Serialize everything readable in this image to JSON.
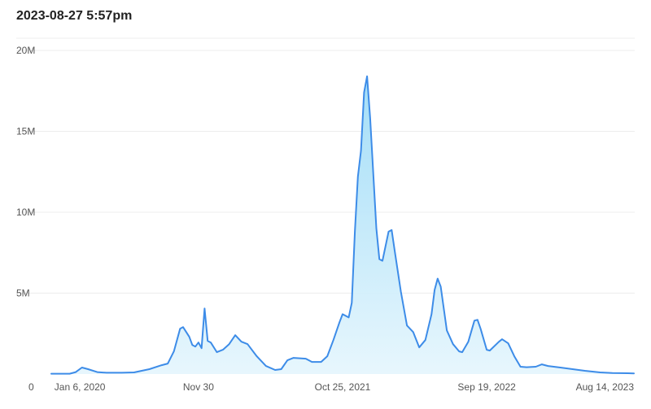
{
  "header": {
    "title": "2023-08-27 5:57pm"
  },
  "chart_data": {
    "type": "area",
    "title": "2023-08-27 5:57pm",
    "xlabel": "",
    "ylabel": "",
    "ylim": [
      0,
      20000000
    ],
    "y_ticks": [
      {
        "value": 0,
        "label": "0"
      },
      {
        "value": 5000000,
        "label": "5M"
      },
      {
        "value": 10000000,
        "label": "10M"
      },
      {
        "value": 15000000,
        "label": "15M"
      },
      {
        "value": 20000000,
        "label": "20M"
      }
    ],
    "x_ticks": [
      {
        "date": "2020-01-06",
        "label": "Jan 6, 2020"
      },
      {
        "date": "2020-11-30",
        "label": "Nov 30"
      },
      {
        "date": "2021-10-25",
        "label": "Oct 25, 2021"
      },
      {
        "date": "2022-09-19",
        "label": "Sep 19, 2022"
      },
      {
        "date": "2023-08-14",
        "label": "Aug 14, 2023"
      }
    ],
    "grid": true,
    "colors": {
      "line": "#3d8ce8",
      "fill_top": "#9fdcf7",
      "fill_bottom": "#e6f6fd"
    },
    "series": [
      {
        "values": [
          [
            "2019-12-30",
            20000
          ],
          [
            "2020-02-10",
            20000
          ],
          [
            "2020-02-24",
            120000
          ],
          [
            "2020-03-09",
            400000
          ],
          [
            "2020-03-23",
            300000
          ],
          [
            "2020-04-13",
            120000
          ],
          [
            "2020-05-04",
            80000
          ],
          [
            "2020-06-08",
            80000
          ],
          [
            "2020-07-06",
            100000
          ],
          [
            "2020-08-10",
            300000
          ],
          [
            "2020-09-07",
            550000
          ],
          [
            "2020-09-21",
            650000
          ],
          [
            "2020-10-05",
            1400000
          ],
          [
            "2020-10-19",
            2800000
          ],
          [
            "2020-10-26",
            2900000
          ],
          [
            "2020-11-09",
            2300000
          ],
          [
            "2020-11-16",
            1800000
          ],
          [
            "2020-11-23",
            1700000
          ],
          [
            "2020-11-30",
            1950000
          ],
          [
            "2020-12-07",
            1600000
          ],
          [
            "2020-12-14",
            4050000
          ],
          [
            "2020-12-21",
            2050000
          ],
          [
            "2020-12-28",
            1950000
          ],
          [
            "2021-01-11",
            1350000
          ],
          [
            "2021-01-25",
            1500000
          ],
          [
            "2021-02-08",
            1850000
          ],
          [
            "2021-02-22",
            2400000
          ],
          [
            "2021-03-08",
            2000000
          ],
          [
            "2021-03-22",
            1850000
          ],
          [
            "2021-04-12",
            1100000
          ],
          [
            "2021-05-03",
            500000
          ],
          [
            "2021-05-24",
            250000
          ],
          [
            "2021-06-07",
            300000
          ],
          [
            "2021-06-21",
            850000
          ],
          [
            "2021-07-05",
            1000000
          ],
          [
            "2021-08-02",
            950000
          ],
          [
            "2021-08-16",
            750000
          ],
          [
            "2021-09-06",
            750000
          ],
          [
            "2021-09-20",
            1100000
          ],
          [
            "2021-10-04",
            2100000
          ],
          [
            "2021-10-18",
            3200000
          ],
          [
            "2021-10-25",
            3700000
          ],
          [
            "2021-11-08",
            3500000
          ],
          [
            "2021-11-15",
            4400000
          ],
          [
            "2021-11-22",
            8800000
          ],
          [
            "2021-11-29",
            12200000
          ],
          [
            "2021-12-06",
            13800000
          ],
          [
            "2021-12-13",
            17400000
          ],
          [
            "2021-12-20",
            18400000
          ],
          [
            "2021-12-27",
            15800000
          ],
          [
            "2022-01-10",
            9000000
          ],
          [
            "2022-01-17",
            7100000
          ],
          [
            "2022-01-24",
            7000000
          ],
          [
            "2022-02-07",
            8800000
          ],
          [
            "2022-02-14",
            8900000
          ],
          [
            "2022-02-21",
            7600000
          ],
          [
            "2022-03-07",
            5100000
          ],
          [
            "2022-03-21",
            3000000
          ],
          [
            "2022-04-04",
            2600000
          ],
          [
            "2022-04-18",
            1650000
          ],
          [
            "2022-05-02",
            2100000
          ],
          [
            "2022-05-16",
            3700000
          ],
          [
            "2022-05-23",
            5200000
          ],
          [
            "2022-05-30",
            5900000
          ],
          [
            "2022-06-06",
            5400000
          ],
          [
            "2022-06-20",
            2700000
          ],
          [
            "2022-07-04",
            1850000
          ],
          [
            "2022-07-18",
            1400000
          ],
          [
            "2022-07-25",
            1350000
          ],
          [
            "2022-08-08",
            2000000
          ],
          [
            "2022-08-22",
            3300000
          ],
          [
            "2022-08-29",
            3350000
          ],
          [
            "2022-09-05",
            2800000
          ],
          [
            "2022-09-19",
            1500000
          ],
          [
            "2022-09-26",
            1450000
          ],
          [
            "2022-10-17",
            2000000
          ],
          [
            "2022-10-24",
            2150000
          ],
          [
            "2022-11-07",
            1900000
          ],
          [
            "2022-11-21",
            1100000
          ],
          [
            "2022-12-05",
            450000
          ],
          [
            "2022-12-19",
            420000
          ],
          [
            "2023-01-09",
            450000
          ],
          [
            "2023-01-23",
            600000
          ],
          [
            "2023-02-06",
            500000
          ],
          [
            "2023-03-06",
            400000
          ],
          [
            "2023-04-03",
            300000
          ],
          [
            "2023-05-01",
            200000
          ],
          [
            "2023-06-05",
            100000
          ],
          [
            "2023-07-03",
            60000
          ],
          [
            "2023-08-07",
            50000
          ],
          [
            "2023-08-21",
            40000
          ]
        ]
      }
    ]
  }
}
